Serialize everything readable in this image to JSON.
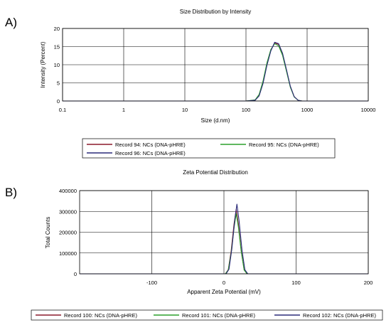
{
  "panels": {
    "a_label": "A)",
    "b_label": "B)"
  },
  "chart_data": [
    {
      "type": "line",
      "title": "Size Distribution by Intensity",
      "xlabel": "Size (d.nm)",
      "ylabel": "Intensity (Percent)",
      "xscale": "log",
      "xlim": [
        0.1,
        10000
      ],
      "ylim": [
        0,
        20
      ],
      "xticks": [
        0.1,
        1,
        10,
        100,
        1000,
        10000
      ],
      "xtick_labels": [
        "0.1",
        "1",
        "10",
        "100",
        "1000",
        "10000"
      ],
      "yticks": [
        0,
        5,
        10,
        15,
        20
      ],
      "ytick_labels": [
        "0",
        "5",
        "10",
        "15",
        "20"
      ],
      "grid": true,
      "legend_position": "below",
      "series": [
        {
          "name": "Record 94: NCs (DNA-pHRE)",
          "color": "#8b1a2b",
          "x": [
            0.1,
            100,
            141,
            164,
            190,
            220,
            255,
            295,
            342,
            396,
            459,
            531,
            615,
            712,
            825,
            955,
            10000
          ],
          "y": [
            0,
            0,
            0.2,
            1.5,
            5,
            10,
            14,
            16,
            15.6,
            13,
            8.5,
            4,
            1.2,
            0.2,
            0,
            0,
            0
          ]
        },
        {
          "name": "Record 95: NCs (DNA-pHRE)",
          "color": "#2ca02c",
          "x": [
            0.1,
            100,
            141,
            164,
            190,
            220,
            255,
            295,
            342,
            396,
            459,
            531,
            615,
            712,
            825,
            955,
            10000
          ],
          "y": [
            0,
            0,
            0.3,
            1.8,
            5.5,
            10.5,
            14.2,
            15.8,
            15.2,
            12.6,
            8.2,
            3.8,
            1.1,
            0.2,
            0,
            0,
            0
          ]
        },
        {
          "name": "Record 96: NCs (DNA-pHRE)",
          "color": "#2c2c7a",
          "x": [
            0.1,
            100,
            141,
            164,
            190,
            220,
            255,
            295,
            342,
            396,
            459,
            531,
            615,
            712,
            825,
            955,
            10000
          ],
          "y": [
            0,
            0,
            0.2,
            1.4,
            4.8,
            9.8,
            13.8,
            16.2,
            15.8,
            13.2,
            8.7,
            4.1,
            1.2,
            0.2,
            0,
            0,
            0
          ]
        }
      ]
    },
    {
      "type": "line",
      "title": "Zeta Potential Distribution",
      "xlabel": "Apparent Zeta Potential (mV)",
      "ylabel": "Total Counts",
      "xscale": "linear",
      "xlim": [
        -200,
        200
      ],
      "ylim": [
        0,
        400000
      ],
      "xticks": [
        -100,
        0,
        100,
        200
      ],
      "xtick_labels": [
        "-100",
        "0",
        "100",
        "200"
      ],
      "yticks": [
        0,
        100000,
        200000,
        300000,
        400000
      ],
      "ytick_labels": [
        "0",
        "100000",
        "200000",
        "300000",
        "400000"
      ],
      "grid": true,
      "legend_position": "below",
      "series": [
        {
          "name": "Record 100: NCs (DNA-pHRE)",
          "color": "#8b1a2b",
          "x": [
            -200,
            2,
            6,
            10,
            14,
            17,
            20,
            24,
            28,
            32,
            200
          ],
          "y": [
            0,
            0,
            20000,
            110000,
            240000,
            310000,
            240000,
            110000,
            20000,
            0,
            0
          ]
        },
        {
          "name": "Record 101: NCs (DNA-pHRE)",
          "color": "#2ca02c",
          "x": [
            -200,
            2,
            6,
            10,
            14,
            17,
            20,
            24,
            28,
            32,
            200
          ],
          "y": [
            0,
            0,
            18000,
            100000,
            220000,
            290000,
            225000,
            105000,
            18000,
            0,
            0
          ]
        },
        {
          "name": "Record 102: NCs (DNA-pHRE)",
          "color": "#2c2c7a",
          "x": [
            -200,
            3,
            7,
            11,
            15,
            18,
            21,
            25,
            29,
            33,
            200
          ],
          "y": [
            0,
            0,
            22000,
            120000,
            260000,
            335000,
            255000,
            115000,
            20000,
            0,
            0
          ]
        }
      ]
    }
  ]
}
